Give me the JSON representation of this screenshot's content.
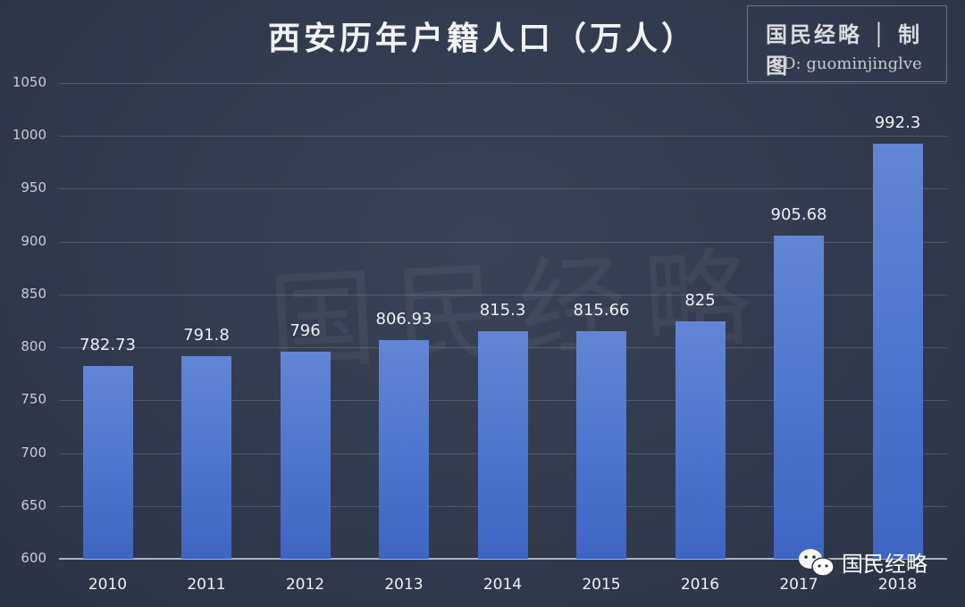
{
  "title": "西安历年户籍人口（万人）",
  "stamp": {
    "line1": "国民经略 │ 制图",
    "line2": "ID: guominjinglve"
  },
  "watermark": "国民经略",
  "footer_brand": {
    "icon": "wechat-icon",
    "text": "国民经略"
  },
  "colors": {
    "background": "#2f3749",
    "bar_top": "#6385d4",
    "bar_bottom": "#3e65c3",
    "text": "#eef0f4"
  },
  "chart_data": {
    "type": "bar",
    "title": "西安历年户籍人口（万人）",
    "xlabel": "",
    "ylabel": "",
    "categories": [
      "2010",
      "2011",
      "2012",
      "2013",
      "2014",
      "2015",
      "2016",
      "2017",
      "2018"
    ],
    "values": [
      782.73,
      791.8,
      796,
      806.93,
      815.3,
      815.66,
      825,
      905.68,
      992.3
    ],
    "value_labels": [
      "782.73",
      "791.8",
      "796",
      "806.93",
      "815.3",
      "815.66",
      "825",
      "905.68",
      "992.3"
    ],
    "ylim": [
      600,
      1050
    ],
    "yticks": [
      600,
      650,
      700,
      750,
      800,
      850,
      900,
      950,
      1000,
      1050
    ],
    "grid": true,
    "legend": "none"
  }
}
